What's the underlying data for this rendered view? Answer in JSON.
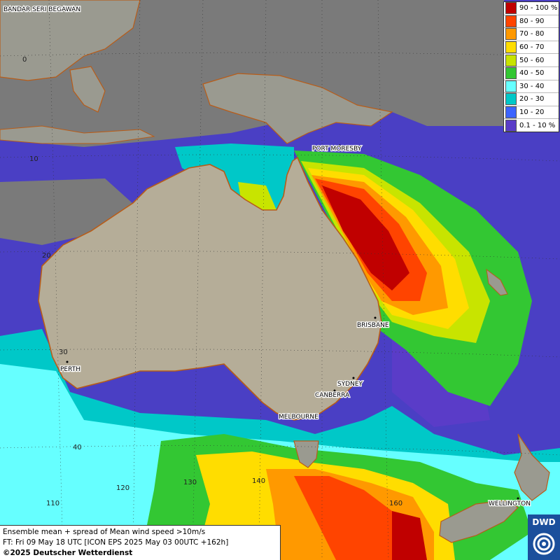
{
  "legend": {
    "items": [
      {
        "label": "90 - 100 %",
        "color": "#c00000"
      },
      {
        "label": "80 - 90",
        "color": "#ff4400"
      },
      {
        "label": "70 - 80",
        "color": "#ff9900"
      },
      {
        "label": "60 - 70",
        "color": "#ffdd00"
      },
      {
        "label": "50 - 60",
        "color": "#c8e400"
      },
      {
        "label": "40 - 50",
        "color": "#33c733"
      },
      {
        "label": "30 - 40",
        "color": "#66ffff"
      },
      {
        "label": "20 - 30",
        "color": "#00c8c8"
      },
      {
        "label": "10 - 20",
        "color": "#3c64ff"
      },
      {
        "label": "0.1 - 10 %",
        "color": "#5a3cc8"
      }
    ]
  },
  "cities": {
    "bandar": "BANDAR SERI BEGAWAN",
    "port_moresby": "PORT MORESBY",
    "brisbane": "BRISBANE",
    "perth": "PERTH",
    "sydney": "SYDNEY",
    "canberra": "CANBERRA",
    "melbourne": "MELBOURNE",
    "wellington": "WELLINGTON"
  },
  "grid": {
    "lat_0": "0",
    "lat_10": "10",
    "lat_20": "20",
    "lat_30": "30",
    "lat_40": "40",
    "lon_110": "110",
    "lon_120": "120",
    "lon_130": "130",
    "lon_140": "140",
    "lon_160": "160"
  },
  "info": {
    "line1": "Ensemble mean + spread of Mean wind speed >10m/s",
    "line2": "FT: Fri 09 May 18 UTC [ICON EPS 2025 May 03 00UTC +162h]",
    "line3": "©2025 Deutscher Wetterdienst"
  },
  "logo": {
    "text": "DWD"
  }
}
